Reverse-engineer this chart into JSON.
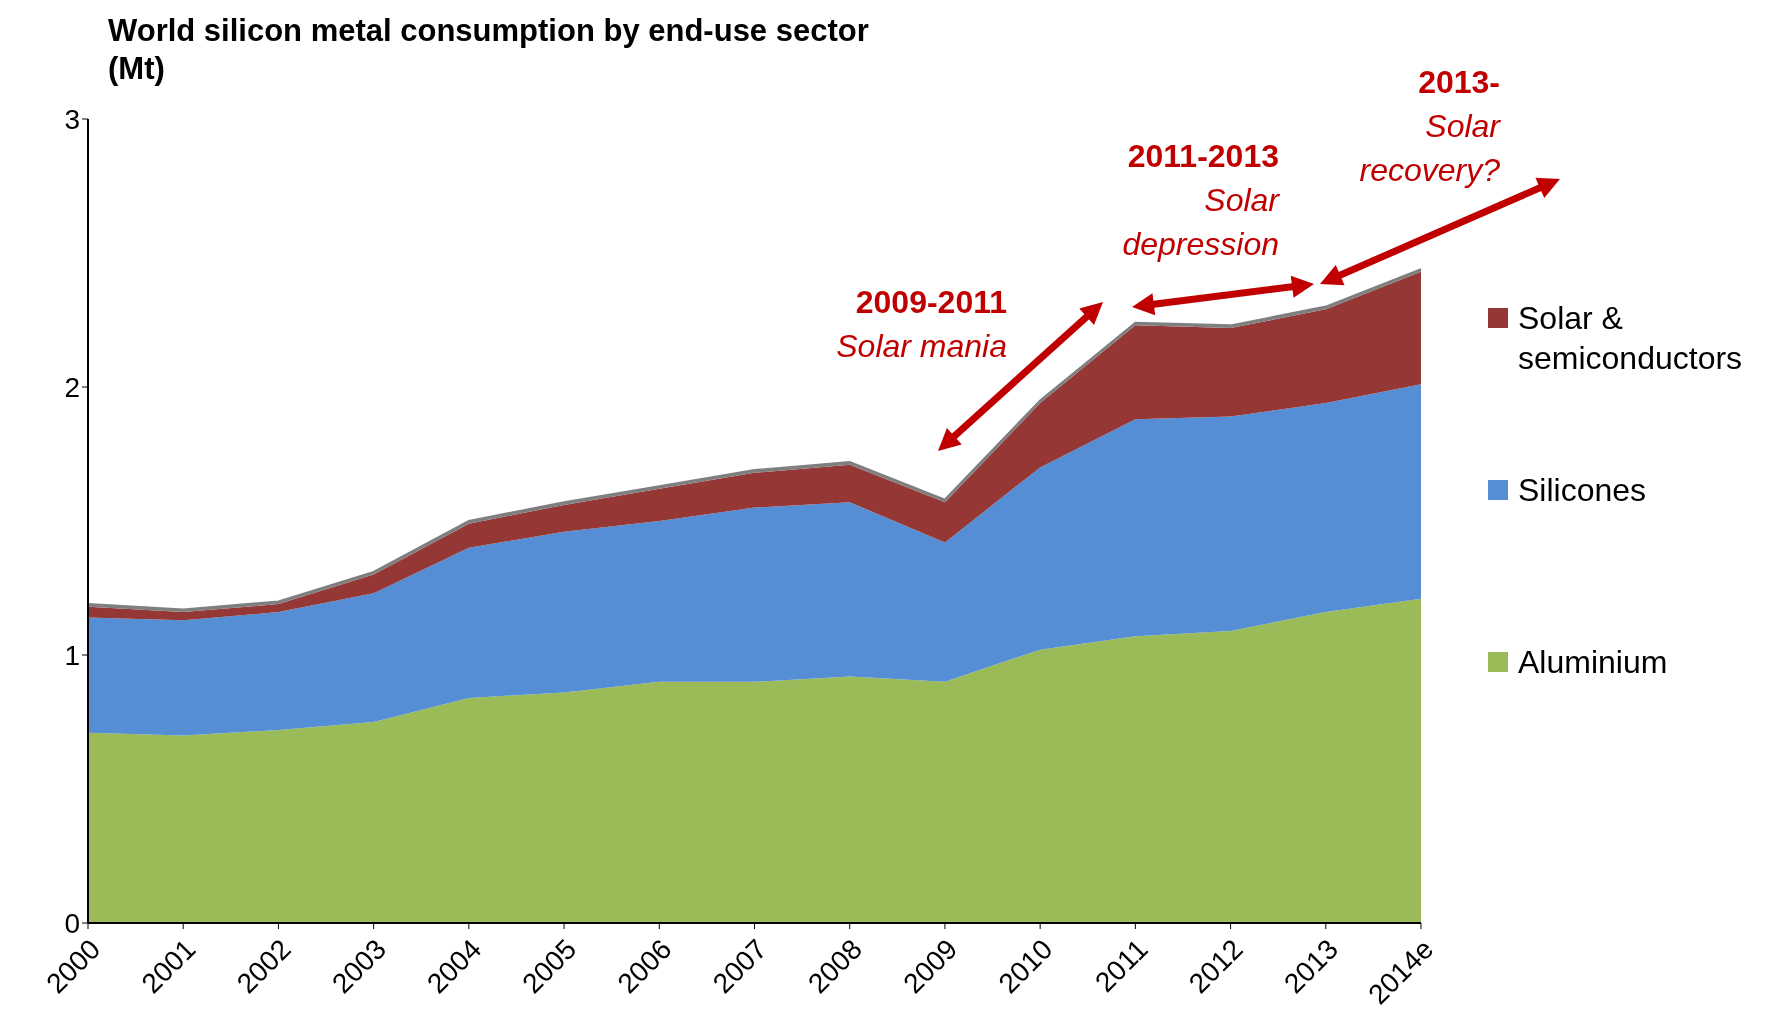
{
  "chart_data": {
    "type": "area",
    "stacked": true,
    "title": "World silicon metal consumption by end-use sector (Mt)",
    "categories": [
      "2000",
      "2001",
      "2002",
      "2003",
      "2004",
      "2005",
      "2006",
      "2007",
      "2008",
      "2009",
      "2010",
      "2011",
      "2012",
      "2013",
      "2014e"
    ],
    "series": [
      {
        "name": "Aluminium",
        "color": "#9bbb59",
        "values": [
          0.71,
          0.7,
          0.72,
          0.75,
          0.84,
          0.86,
          0.9,
          0.9,
          0.92,
          0.9,
          1.02,
          1.07,
          1.09,
          1.16,
          1.21
        ]
      },
      {
        "name": "Silicones",
        "color": "#558ed5",
        "values": [
          0.43,
          0.43,
          0.44,
          0.48,
          0.56,
          0.6,
          0.6,
          0.65,
          0.65,
          0.52,
          0.68,
          0.81,
          0.8,
          0.78,
          0.8
        ]
      },
      {
        "name": "Solar & semiconductors",
        "color": "#953735",
        "values": [
          0.04,
          0.03,
          0.03,
          0.07,
          0.09,
          0.1,
          0.12,
          0.13,
          0.14,
          0.15,
          0.24,
          0.35,
          0.33,
          0.35,
          0.42
        ]
      },
      {
        "color": "#7f7f7f",
        "values": [
          0.01,
          0.01,
          0.01,
          0.01,
          0.01,
          0.01,
          0.01,
          0.01,
          0.01,
          0.01,
          0.01,
          0.01,
          0.01,
          0.01,
          0.01
        ]
      }
    ],
    "ylim": [
      0,
      3
    ],
    "yticks": [
      0,
      1,
      2,
      3
    ],
    "legend": "right",
    "annotations": [
      "2009-2011",
      "Solar mania",
      "2011-2013",
      "Solar depression",
      "2013-",
      "Solar recovery?"
    ]
  }
}
